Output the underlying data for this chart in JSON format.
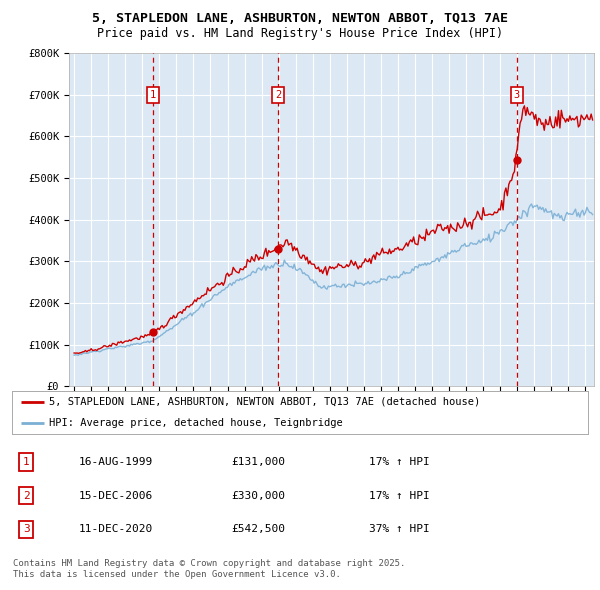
{
  "title_line1": "5, STAPLEDON LANE, ASHBURTON, NEWTON ABBOT, TQ13 7AE",
  "title_line2": "Price paid vs. HM Land Registry's House Price Index (HPI)",
  "ylim": [
    0,
    800000
  ],
  "yticks": [
    0,
    100000,
    200000,
    300000,
    400000,
    500000,
    600000,
    700000,
    800000
  ],
  "ytick_labels": [
    "£0",
    "£100K",
    "£200K",
    "£300K",
    "£400K",
    "£500K",
    "£600K",
    "£700K",
    "£800K"
  ],
  "background_color": "#dce9f5",
  "grid_color": "#ffffff",
  "sale_color": "#cc0000",
  "hpi_color": "#7bafd4",
  "transaction_prices": [
    131000,
    330000,
    542500
  ],
  "transaction_labels": [
    "1",
    "2",
    "3"
  ],
  "transaction_pct": [
    "17% ↑ HPI",
    "17% ↑ HPI",
    "37% ↑ HPI"
  ],
  "transaction_date_strs": [
    "16-AUG-1999",
    "15-DEC-2006",
    "11-DEC-2020"
  ],
  "legend_sale_label": "5, STAPLEDON LANE, ASHBURTON, NEWTON ABBOT, TQ13 7AE (detached house)",
  "legend_hpi_label": "HPI: Average price, detached house, Teignbridge",
  "footer_text": "Contains HM Land Registry data © Crown copyright and database right 2025.\nThis data is licensed under the Open Government Licence v3.0.",
  "xlim_start": 1994.7,
  "xlim_end": 2025.5,
  "xticks": [
    1995,
    1996,
    1997,
    1998,
    1999,
    2000,
    2001,
    2002,
    2003,
    2004,
    2005,
    2006,
    2007,
    2008,
    2009,
    2010,
    2011,
    2012,
    2013,
    2014,
    2015,
    2016,
    2017,
    2018,
    2019,
    2020,
    2021,
    2022,
    2023,
    2024,
    2025
  ]
}
